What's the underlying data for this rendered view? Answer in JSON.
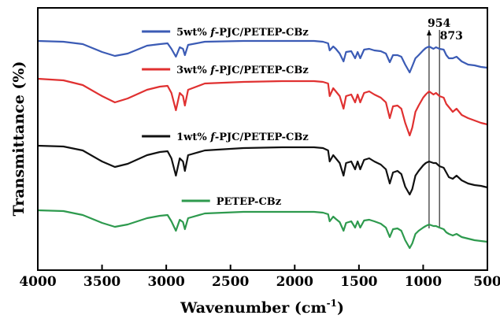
{
  "chart_data": {
    "type": "line",
    "xlabel": "Wavenumber (cm",
    "xlabel_sup": "-1",
    "xlabel_close": ")",
    "ylabel": "Transmittance (%)",
    "xlim": [
      4000,
      500
    ],
    "x_reversed": true,
    "x_ticks": [
      4000,
      3500,
      3000,
      2500,
      2000,
      1500,
      1000,
      500
    ],
    "y_ticks_labeled": false,
    "grid": false,
    "legend_placement": "inline-above-each-series",
    "series": [
      {
        "name_prefix": "5wt% ",
        "name_italic": "f",
        "name_suffix": "-PJC/PETEP-CBz",
        "color": "#3b5bb5",
        "legend_x": 3190,
        "offset": 52,
        "points": [
          [
            4000,
            0
          ],
          [
            3800,
            1
          ],
          [
            3650,
            4
          ],
          [
            3500,
            14
          ],
          [
            3400,
            19
          ],
          [
            3300,
            16
          ],
          [
            3150,
            6
          ],
          [
            3050,
            4
          ],
          [
            2990,
            3
          ],
          [
            2960,
            10
          ],
          [
            2925,
            20
          ],
          [
            2895,
            8
          ],
          [
            2870,
            10
          ],
          [
            2855,
            18
          ],
          [
            2830,
            5
          ],
          [
            2700,
            1
          ],
          [
            2400,
            0
          ],
          [
            2100,
            0
          ],
          [
            1850,
            0
          ],
          [
            1780,
            1
          ],
          [
            1740,
            3
          ],
          [
            1728,
            12
          ],
          [
            1700,
            7
          ],
          [
            1680,
            10
          ],
          [
            1650,
            16
          ],
          [
            1620,
            26
          ],
          [
            1600,
            14
          ],
          [
            1560,
            13
          ],
          [
            1530,
            22
          ],
          [
            1510,
            14
          ],
          [
            1490,
            22
          ],
          [
            1460,
            11
          ],
          [
            1420,
            10
          ],
          [
            1380,
            12
          ],
          [
            1330,
            13
          ],
          [
            1290,
            16
          ],
          [
            1260,
            27
          ],
          [
            1235,
            18
          ],
          [
            1200,
            18
          ],
          [
            1170,
            20
          ],
          [
            1140,
            30
          ],
          [
            1105,
            40
          ],
          [
            1085,
            32
          ],
          [
            1060,
            22
          ],
          [
            1035,
            18
          ],
          [
            1000,
            12
          ],
          [
            980,
            9
          ],
          [
            954,
            7
          ],
          [
            920,
            10
          ],
          [
            900,
            8
          ],
          [
            873,
            10
          ],
          [
            840,
            11
          ],
          [
            820,
            18
          ],
          [
            800,
            22
          ],
          [
            770,
            22
          ],
          [
            740,
            20
          ],
          [
            700,
            26
          ],
          [
            650,
            30
          ],
          [
            600,
            31
          ],
          [
            550,
            33
          ],
          [
            500,
            34
          ]
        ]
      },
      {
        "name_prefix": "3wt% ",
        "name_italic": "f",
        "name_suffix": "-PJC/PETEP-CBz",
        "color": "#e03131",
        "legend_x": 3190,
        "offset": 100,
        "points": [
          [
            4000,
            0
          ],
          [
            3800,
            2
          ],
          [
            3650,
            8
          ],
          [
            3500,
            22
          ],
          [
            3400,
            30
          ],
          [
            3300,
            25
          ],
          [
            3150,
            14
          ],
          [
            3050,
            10
          ],
          [
            2990,
            9
          ],
          [
            2960,
            18
          ],
          [
            2925,
            40
          ],
          [
            2895,
            18
          ],
          [
            2870,
            22
          ],
          [
            2855,
            34
          ],
          [
            2830,
            14
          ],
          [
            2700,
            6
          ],
          [
            2400,
            4
          ],
          [
            2100,
            3
          ],
          [
            1850,
            3
          ],
          [
            1780,
            4
          ],
          [
            1740,
            6
          ],
          [
            1728,
            22
          ],
          [
            1700,
            12
          ],
          [
            1680,
            16
          ],
          [
            1650,
            22
          ],
          [
            1620,
            38
          ],
          [
            1600,
            22
          ],
          [
            1560,
            20
          ],
          [
            1530,
            30
          ],
          [
            1510,
            20
          ],
          [
            1490,
            30
          ],
          [
            1460,
            18
          ],
          [
            1420,
            16
          ],
          [
            1380,
            20
          ],
          [
            1330,
            24
          ],
          [
            1290,
            30
          ],
          [
            1260,
            50
          ],
          [
            1235,
            35
          ],
          [
            1200,
            34
          ],
          [
            1170,
            38
          ],
          [
            1140,
            56
          ],
          [
            1105,
            72
          ],
          [
            1085,
            62
          ],
          [
            1060,
            42
          ],
          [
            1035,
            34
          ],
          [
            1000,
            24
          ],
          [
            980,
            20
          ],
          [
            954,
            16
          ],
          [
            920,
            20
          ],
          [
            900,
            18
          ],
          [
            873,
            22
          ],
          [
            840,
            24
          ],
          [
            820,
            32
          ],
          [
            800,
            36
          ],
          [
            770,
            42
          ],
          [
            740,
            38
          ],
          [
            700,
            46
          ],
          [
            650,
            50
          ],
          [
            600,
            53
          ],
          [
            550,
            56
          ],
          [
            500,
            58
          ]
        ]
      },
      {
        "name_prefix": "1wt% ",
        "name_italic": "f",
        "name_suffix": "-PJC/PETEP-CBz",
        "color": "#111111",
        "legend_x": 3190,
        "offset": 185,
        "points": [
          [
            4000,
            0
          ],
          [
            3800,
            1
          ],
          [
            3650,
            6
          ],
          [
            3500,
            20
          ],
          [
            3400,
            27
          ],
          [
            3300,
            23
          ],
          [
            3150,
            12
          ],
          [
            3050,
            8
          ],
          [
            2990,
            7
          ],
          [
            2960,
            16
          ],
          [
            2925,
            38
          ],
          [
            2895,
            16
          ],
          [
            2870,
            20
          ],
          [
            2855,
            32
          ],
          [
            2830,
            12
          ],
          [
            2700,
            6
          ],
          [
            2400,
            3
          ],
          [
            2100,
            2
          ],
          [
            1850,
            2
          ],
          [
            1780,
            3
          ],
          [
            1740,
            6
          ],
          [
            1728,
            20
          ],
          [
            1700,
            12
          ],
          [
            1680,
            16
          ],
          [
            1650,
            22
          ],
          [
            1620,
            38
          ],
          [
            1600,
            22
          ],
          [
            1560,
            20
          ],
          [
            1530,
            30
          ],
          [
            1510,
            20
          ],
          [
            1490,
            30
          ],
          [
            1460,
            18
          ],
          [
            1420,
            16
          ],
          [
            1380,
            20
          ],
          [
            1330,
            24
          ],
          [
            1290,
            30
          ],
          [
            1260,
            48
          ],
          [
            1235,
            34
          ],
          [
            1200,
            32
          ],
          [
            1170,
            36
          ],
          [
            1140,
            52
          ],
          [
            1105,
            62
          ],
          [
            1085,
            55
          ],
          [
            1060,
            38
          ],
          [
            1035,
            32
          ],
          [
            1000,
            25
          ],
          [
            980,
            22
          ],
          [
            954,
            20
          ],
          [
            920,
            22
          ],
          [
            900,
            22
          ],
          [
            873,
            26
          ],
          [
            840,
            28
          ],
          [
            820,
            34
          ],
          [
            800,
            40
          ],
          [
            770,
            42
          ],
          [
            740,
            38
          ],
          [
            700,
            44
          ],
          [
            650,
            48
          ],
          [
            600,
            50
          ],
          [
            550,
            51
          ],
          [
            500,
            53
          ]
        ]
      },
      {
        "name_prefix": "",
        "name_italic": "",
        "name_suffix": "PETEP-CBz",
        "color": "#2e9a4e",
        "legend_x": 2880,
        "offset": 267,
        "points": [
          [
            4000,
            0
          ],
          [
            3800,
            1
          ],
          [
            3650,
            6
          ],
          [
            3500,
            16
          ],
          [
            3400,
            21
          ],
          [
            3300,
            18
          ],
          [
            3150,
            10
          ],
          [
            3050,
            7
          ],
          [
            2990,
            6
          ],
          [
            2960,
            14
          ],
          [
            2925,
            26
          ],
          [
            2895,
            12
          ],
          [
            2870,
            15
          ],
          [
            2855,
            24
          ],
          [
            2830,
            10
          ],
          [
            2700,
            4
          ],
          [
            2400,
            2
          ],
          [
            2100,
            2
          ],
          [
            1850,
            2
          ],
          [
            1780,
            3
          ],
          [
            1740,
            5
          ],
          [
            1728,
            14
          ],
          [
            1700,
            8
          ],
          [
            1680,
            11
          ],
          [
            1650,
            15
          ],
          [
            1620,
            26
          ],
          [
            1600,
            16
          ],
          [
            1560,
            14
          ],
          [
            1530,
            22
          ],
          [
            1510,
            14
          ],
          [
            1490,
            22
          ],
          [
            1460,
            13
          ],
          [
            1420,
            12
          ],
          [
            1380,
            14
          ],
          [
            1330,
            17
          ],
          [
            1290,
            22
          ],
          [
            1260,
            34
          ],
          [
            1235,
            24
          ],
          [
            1200,
            23
          ],
          [
            1170,
            26
          ],
          [
            1140,
            38
          ],
          [
            1105,
            48
          ],
          [
            1085,
            42
          ],
          [
            1060,
            30
          ],
          [
            1035,
            26
          ],
          [
            1000,
            22
          ],
          [
            980,
            20
          ],
          [
            954,
            18
          ],
          [
            920,
            20
          ],
          [
            900,
            20
          ],
          [
            873,
            22
          ],
          [
            840,
            24
          ],
          [
            820,
            28
          ],
          [
            800,
            30
          ],
          [
            770,
            32
          ],
          [
            740,
            30
          ],
          [
            700,
            34
          ],
          [
            650,
            36
          ],
          [
            600,
            38
          ],
          [
            550,
            39
          ],
          [
            500,
            40
          ]
        ]
      }
    ],
    "annotations": [
      {
        "label": "954",
        "x": 954,
        "label_x": 966,
        "label_y": 34
      },
      {
        "label": "873",
        "x": 873,
        "label_x": 870,
        "label_y": 50
      }
    ]
  }
}
